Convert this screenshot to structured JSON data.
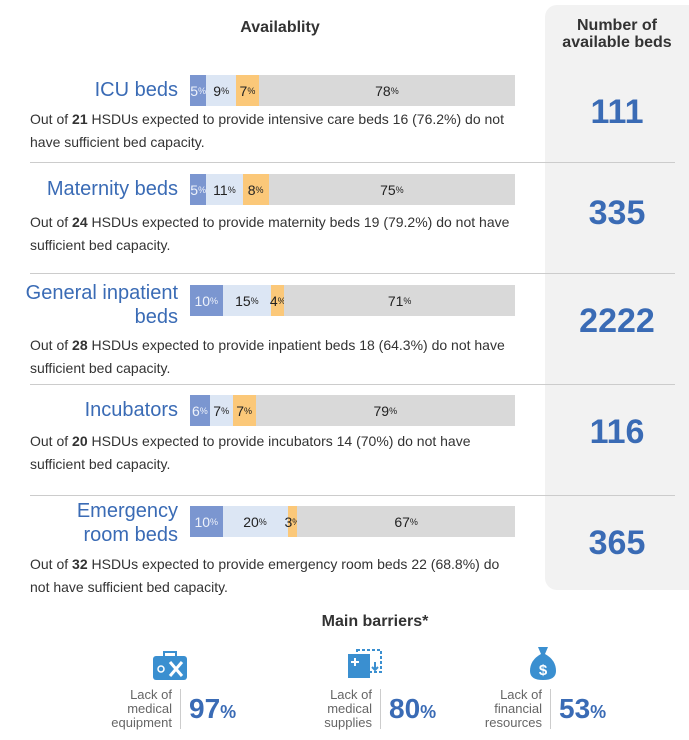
{
  "header": {
    "availability": "Availablity",
    "beds_title": [
      "Number of",
      "available beds"
    ]
  },
  "percent_sign": "%",
  "segment_colors": [
    "#7b96d0",
    "#dce6f4",
    "#fbc879",
    "#d9d9d9"
  ],
  "segment_text_colors": [
    "#eef2fa",
    "#222222",
    "#222222",
    "#222222"
  ],
  "rows": [
    {
      "label": [
        "ICU beds"
      ],
      "segments": [
        5,
        9,
        7,
        78
      ],
      "desc_before": "Out of",
      "count": 21,
      "desc_after": "HSDUs expected to provide intensive care beds 16 (76.2%) do not have sufficient bed capacity.",
      "beds": 111
    },
    {
      "label": [
        "Maternity beds"
      ],
      "segments": [
        5,
        11,
        8,
        75
      ],
      "desc_before": "Out of",
      "count": 24,
      "desc_after": "HSDUs expected to provide maternity beds 19 (79.2%) do not have sufficient bed capacity.",
      "beds": 335
    },
    {
      "label": [
        "General inpatient",
        "beds"
      ],
      "segments": [
        10,
        15,
        4,
        71
      ],
      "desc_before": "Out of",
      "count": 28,
      "desc_after": "HSDUs expected to provide inpatient beds 18 (64.3%) do not have sufficient bed capacity.",
      "beds": 2222
    },
    {
      "label": [
        "Incubators"
      ],
      "segments": [
        6,
        7,
        7,
        79
      ],
      "desc_before": "Out of",
      "count": 20,
      "desc_after": "HSDUs expected to provide incubators 14 (70%) do not have sufficient bed capacity.",
      "beds": 116
    },
    {
      "label": [
        "Emergency",
        "room beds"
      ],
      "segments": [
        10,
        20,
        3,
        67
      ],
      "desc_before": "Out of",
      "count": 32,
      "desc_after": "HSDUs expected to provide emergency room beds 22 (68.8%) do not have sufficient bed capacity.",
      "beds": 365
    }
  ],
  "barriers": {
    "title": "Main barriers*",
    "items": [
      {
        "label": [
          "Lack of",
          "medical",
          "equipment"
        ],
        "value": 97
      },
      {
        "label": [
          "Lack of",
          "medical",
          "supplies"
        ],
        "value": 80
      },
      {
        "label": [
          "Lack of",
          "financial",
          "resources"
        ],
        "value": 53
      }
    ]
  }
}
